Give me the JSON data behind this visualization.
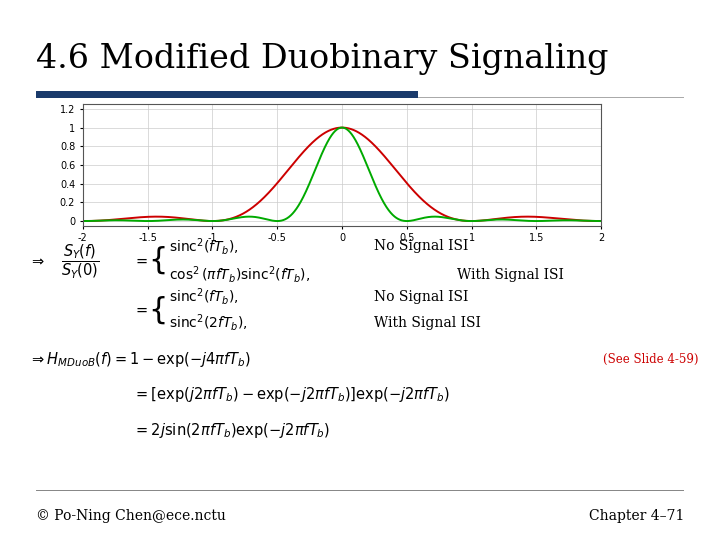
{
  "title": "4.6 Modified Duobinary Signaling",
  "title_fontsize": 24,
  "title_color": "#000000",
  "footer_left": "© Po-Ning Chen@ece.nctu",
  "footer_right": "Chapter 4–71",
  "footer_fontsize": 10,
  "see_slide_text": "(See Slide 4-59)",
  "see_slide_color": "#cc0000",
  "bg_color": "#ffffff",
  "plot_xlim": [
    -2.0,
    2.0
  ],
  "plot_ylim": [
    -0.05,
    1.25
  ],
  "plot_xticks": [
    -2.0,
    -1.5,
    -1.0,
    -0.5,
    0.0,
    0.5,
    1.0,
    1.5,
    2.0
  ],
  "plot_xticklabels": [
    "-2",
    "-1.5",
    "-1",
    "-0.5",
    "0",
    "0.5",
    "1",
    "1.5",
    "2"
  ],
  "plot_yticks": [
    0.0,
    0.2,
    0.4,
    0.6,
    0.8,
    1.0,
    1.2
  ],
  "plot_yticklabels": [
    "0",
    "0.2",
    "0.4",
    "0.6",
    "0.8",
    "1",
    "1.2"
  ],
  "line_red_color": "#cc0000",
  "line_green_color": "#00aa00",
  "rule_dark_color": "#1a3a6b",
  "rule_light_color": "#aaaaaa"
}
